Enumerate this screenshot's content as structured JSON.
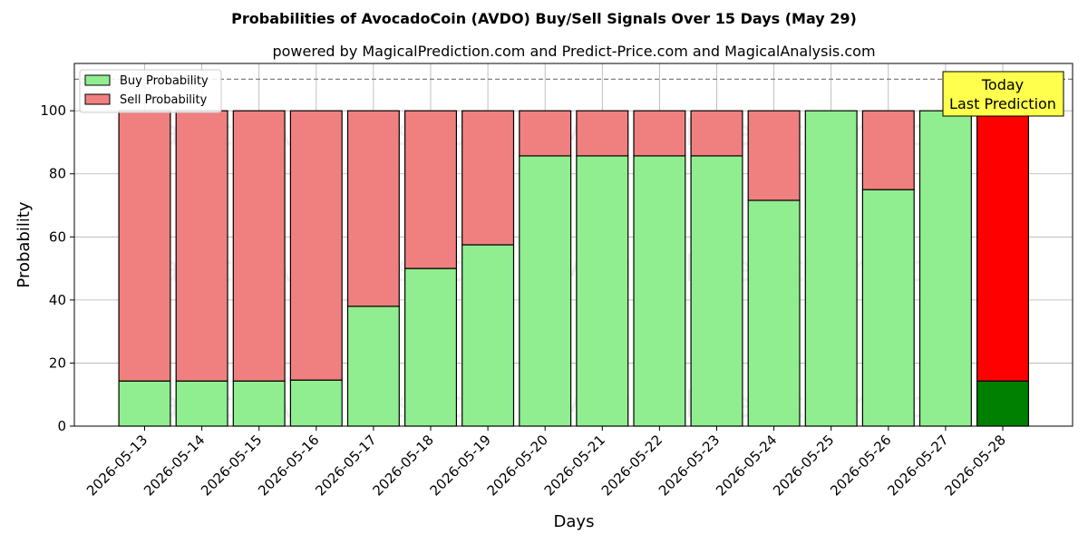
{
  "chart_data": {
    "type": "bar",
    "stacked": true,
    "title": "Probabilities of AvocadoCoin (AVDO) Buy/Sell Signals Over 15 Days (May 29)",
    "subtitle": "powered by MagicalPrediction.com and Predict-Price.com and MagicalAnalysis.com",
    "xlabel": "Days",
    "ylabel": "Probability",
    "ylim": [
      0,
      115
    ],
    "yticks": [
      0,
      20,
      40,
      60,
      80,
      100
    ],
    "reference_line": 110,
    "grid": true,
    "legend_position": "top-left",
    "categories": [
      "2026-05-13",
      "2026-05-14",
      "2026-05-15",
      "2026-05-16",
      "2026-05-17",
      "2026-05-18",
      "2026-05-19",
      "2026-05-20",
      "2026-05-21",
      "2026-05-22",
      "2026-05-23",
      "2026-05-24",
      "2026-05-25",
      "2026-05-26",
      "2026-05-27",
      "2026-05-28"
    ],
    "series": [
      {
        "name": "Buy Probability",
        "color": "#90ee90",
        "values": [
          14.3,
          14.3,
          14.3,
          14.6,
          38,
          50,
          57.5,
          85.7,
          85.7,
          85.7,
          85.7,
          71.6,
          100,
          75,
          100,
          14.3
        ]
      },
      {
        "name": "Sell Probability",
        "color": "#f08080",
        "values": [
          85.7,
          85.7,
          85.7,
          85.4,
          62,
          50,
          42.5,
          14.3,
          14.3,
          14.3,
          14.3,
          28.4,
          0,
          25,
          0,
          85.7
        ]
      }
    ],
    "highlight": {
      "index": 15,
      "buy_color": "#008000",
      "sell_color": "#ff0000"
    },
    "annotation": {
      "lines": [
        "Today",
        "Last Prediction"
      ],
      "background": "#ffff4d"
    },
    "watermarks": [
      "MagicalAnalysis.com",
      "MagicalPrediction.com"
    ]
  }
}
